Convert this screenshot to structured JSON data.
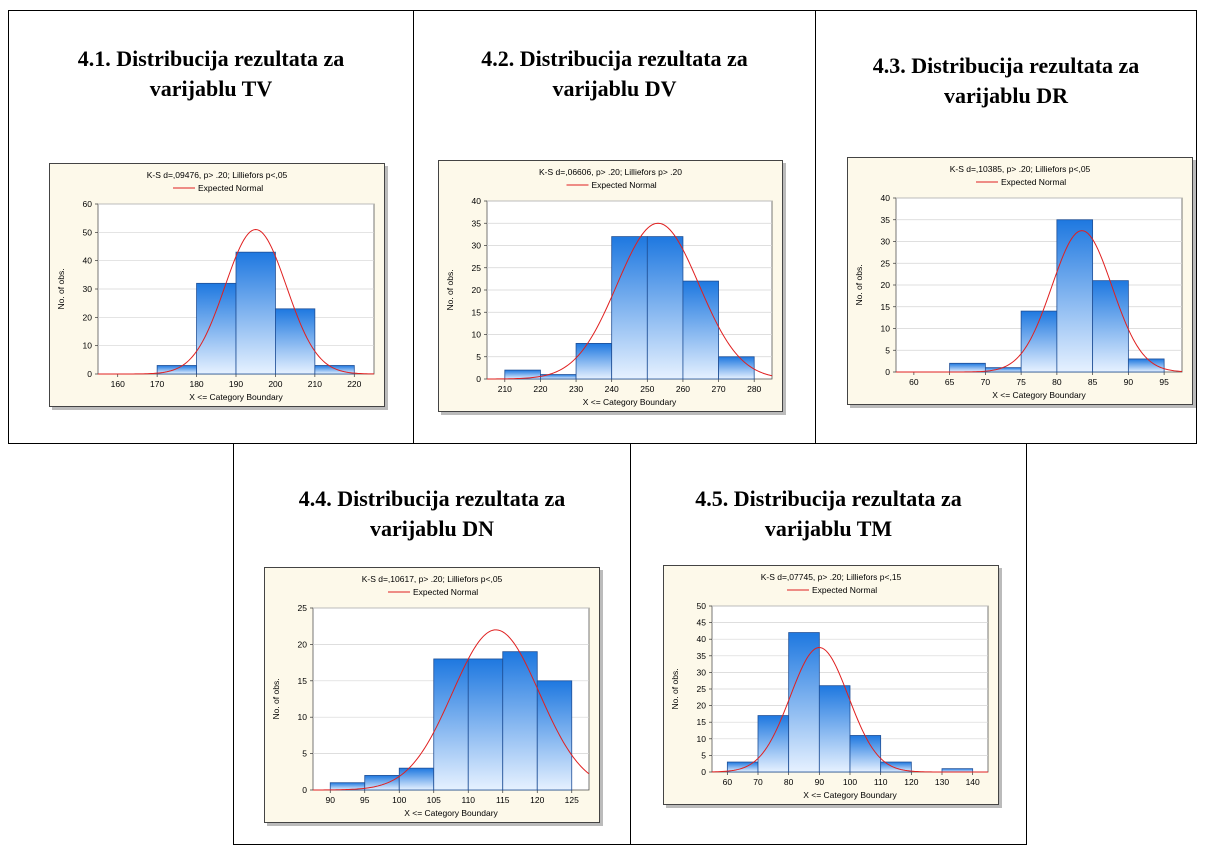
{
  "figures": [
    {
      "title_line1": "4.1. Distribucija rezultata za",
      "title_line2": "varijablu  TV"
    },
    {
      "title_line1": "4.2. Distribucija rezultata za",
      "title_line2": "varijablu  DV"
    },
    {
      "title_line1": "4.3. Distribucija rezultata za",
      "title_line2": "varijablu  DR"
    },
    {
      "title_line1": "4.4. Distribucija rezultata za",
      "title_line2": "varijablu  DN"
    },
    {
      "title_line1": "4.5. Distribucija rezultata za",
      "title_line2": "varijablu  TM"
    }
  ],
  "colors": {
    "bar_top": "#1e78e0",
    "bar_bottom": "#e6f1ff",
    "bar_stroke": "#1f4f96",
    "curve": "#e02020",
    "panel_bg": "#fdf9ea",
    "plot_bg": "#ffffff",
    "grid": "#d4d4d4"
  },
  "chart_data": [
    {
      "type": "bar",
      "title": "K-S d=,09476, p> .20; Lilliefors p<,05",
      "legend": "Expected Normal",
      "xlabel": "X <= Category Boundary",
      "ylabel": "No. of obs.",
      "bin_edges": [
        170,
        180,
        190,
        200,
        210,
        220
      ],
      "values": [
        3,
        32,
        43,
        23,
        3
      ],
      "xlim": [
        155,
        225
      ],
      "xticks": [
        160,
        170,
        180,
        190,
        200,
        210,
        220
      ],
      "ylim": [
        0,
        60
      ],
      "yticks": [
        0,
        10,
        20,
        30,
        40,
        50,
        60
      ],
      "normal": {
        "mean": 195,
        "sd": 7.8,
        "peak": 51
      }
    },
    {
      "type": "bar",
      "title": "K-S d=,06606, p> .20; Lilliefors p> .20",
      "legend": "Expected Normal",
      "xlabel": "X <= Category Boundary",
      "ylabel": "No. of obs.",
      "bin_edges": [
        210,
        220,
        230,
        240,
        250,
        260,
        270,
        280
      ],
      "values": [
        2,
        1,
        8,
        32,
        32,
        22,
        5
      ],
      "xlim": [
        205,
        285
      ],
      "xticks": [
        210,
        220,
        230,
        240,
        250,
        260,
        270,
        280
      ],
      "ylim": [
        0,
        40
      ],
      "yticks": [
        0,
        5,
        10,
        15,
        20,
        25,
        30,
        35,
        40
      ],
      "normal": {
        "mean": 253,
        "sd": 11.5,
        "peak": 35
      }
    },
    {
      "type": "bar",
      "title": "K-S d=,10385, p> .20; Lilliefors p<,05",
      "legend": "Expected Normal",
      "xlabel": "X <= Category Boundary",
      "ylabel": "No. of obs.",
      "bin_edges": [
        65,
        70,
        75,
        80,
        85,
        90,
        95
      ],
      "values": [
        2,
        1,
        14,
        35,
        21,
        3
      ],
      "xlim": [
        57.5,
        97.5
      ],
      "xticks": [
        60,
        65,
        70,
        75,
        80,
        85,
        90,
        95
      ],
      "ylim": [
        0,
        40
      ],
      "yticks": [
        0,
        5,
        10,
        15,
        20,
        25,
        30,
        35,
        40
      ],
      "normal": {
        "mean": 83.5,
        "sd": 4.2,
        "peak": 32.5
      }
    },
    {
      "type": "bar",
      "title": "K-S d=,10617, p> .20; Lilliefors p<,05",
      "legend": "Expected Normal",
      "xlabel": "X <= Category Boundary",
      "ylabel": "No. of obs.",
      "bin_edges": [
        90,
        95,
        100,
        105,
        110,
        115,
        120,
        125
      ],
      "values": [
        1,
        2,
        3,
        18,
        18,
        19,
        15
      ],
      "xlim": [
        87.5,
        127.5
      ],
      "xticks": [
        90,
        95,
        100,
        105,
        110,
        115,
        120,
        125
      ],
      "ylim": [
        0,
        25
      ],
      "yticks": [
        0,
        5,
        10,
        15,
        20,
        25
      ],
      "normal": {
        "mean": 114,
        "sd": 6.3,
        "peak": 22
      }
    },
    {
      "type": "bar",
      "title": "K-S d=,07745, p> .20; Lilliefors p<,15",
      "legend": "Expected Normal",
      "xlabel": "X <= Category Boundary",
      "ylabel": "No. of obs.",
      "bin_edges": [
        60,
        70,
        80,
        90,
        100,
        110,
        120,
        130,
        140
      ],
      "values": [
        3,
        17,
        42,
        26,
        11,
        3,
        0,
        1
      ],
      "xlim": [
        55,
        145
      ],
      "xticks": [
        60,
        70,
        80,
        90,
        100,
        110,
        120,
        130,
        140
      ],
      "ylim": [
        0,
        50
      ],
      "yticks": [
        0,
        5,
        10,
        15,
        20,
        25,
        30,
        35,
        40,
        45,
        50
      ],
      "normal": {
        "mean": 90,
        "sd": 9.5,
        "peak": 37.5
      }
    }
  ]
}
